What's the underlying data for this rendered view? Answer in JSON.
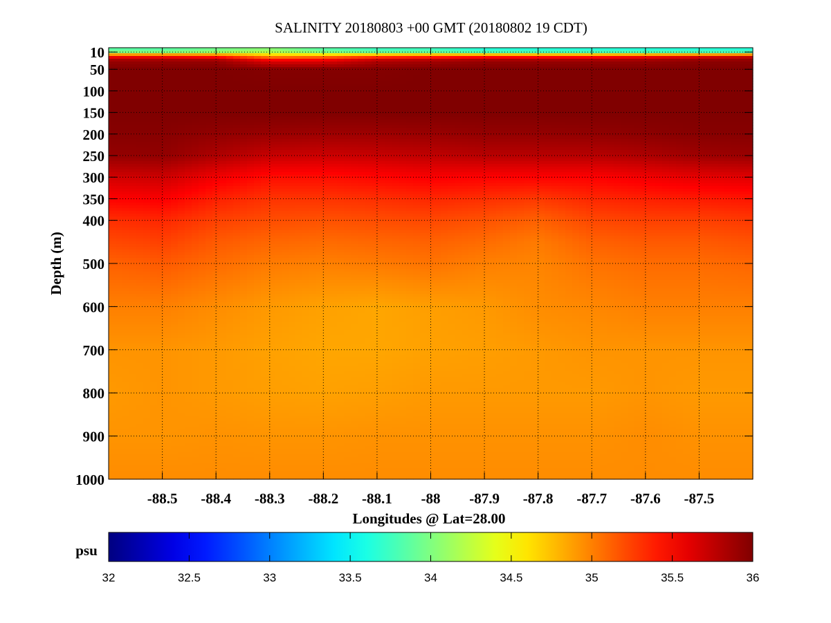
{
  "chart_data": {
    "type": "heatmap",
    "title": "SALINITY 20180803 +00 GMT (20180802 19 CDT)",
    "xlabel": "Longitudes @ Lat=28.00",
    "ylabel": "Depth (m)",
    "xlim": [
      -88.6,
      -87.4
    ],
    "ylim": [
      0,
      1000
    ],
    "y_inverted": true,
    "grid": true,
    "x_ticks": [
      -88.5,
      -88.4,
      -88.3,
      -88.2,
      -88.1,
      -88,
      -87.9,
      -87.8,
      -87.7,
      -87.6,
      -87.5
    ],
    "x_tick_labels": [
      "-88.5",
      "-88.4",
      "-88.3",
      "-88.2",
      "-88.1",
      "-88",
      "-87.9",
      "-87.8",
      "-87.7",
      "-87.6",
      "-87.5"
    ],
    "y_ticks": [
      10,
      50,
      100,
      150,
      200,
      250,
      300,
      350,
      400,
      500,
      600,
      700,
      800,
      900,
      1000
    ],
    "y_tick_labels": [
      "10",
      "50",
      "100",
      "150",
      "200",
      "250",
      "300",
      "350",
      "400",
      "500",
      "600",
      "700",
      "800",
      "900",
      "1000"
    ],
    "colorbar": {
      "label": "psu",
      "range": [
        32,
        36
      ],
      "colormap": "jet",
      "ticks": [
        32,
        32.5,
        33,
        33.5,
        34,
        34.5,
        35,
        35.5,
        36
      ],
      "tick_labels": [
        "32",
        "32.5",
        "33",
        "33.5",
        "34",
        "34.5",
        "35",
        "35.5",
        "36"
      ]
    },
    "grid_lon": [
      -88.6,
      -88.5,
      -88.4,
      -88.3,
      -88.2,
      -88.1,
      -88.0,
      -87.9,
      -87.8,
      -87.7,
      -87.6,
      -87.5,
      -87.4
    ],
    "grid_depth": [
      0,
      10,
      20,
      30,
      50,
      100,
      150,
      200,
      250,
      300,
      350,
      400,
      450,
      500,
      600,
      700,
      800,
      900,
      1000
    ],
    "values": [
      [
        33.8,
        33.8,
        33.9,
        34.0,
        33.8,
        33.7,
        33.7,
        33.6,
        33.6,
        33.6,
        33.6,
        33.6,
        33.6
      ],
      [
        34.0,
        34.0,
        34.1,
        34.2,
        34.0,
        33.9,
        33.9,
        33.8,
        33.8,
        33.8,
        33.8,
        33.8,
        33.8
      ],
      [
        35.5,
        35.5,
        35.4,
        34.9,
        35.0,
        35.2,
        35.3,
        35.4,
        35.4,
        35.4,
        35.5,
        35.6,
        35.7
      ],
      [
        35.9,
        35.9,
        35.9,
        35.6,
        35.6,
        35.8,
        35.85,
        35.9,
        35.9,
        35.9,
        35.9,
        35.95,
        35.95
      ],
      [
        36.0,
        36.0,
        36.0,
        35.98,
        35.98,
        35.98,
        36.0,
        36.0,
        36.0,
        36.0,
        36.0,
        36.0,
        36.0
      ],
      [
        36.0,
        36.0,
        36.0,
        36.0,
        36.0,
        36.0,
        36.0,
        36.0,
        36.0,
        36.0,
        36.0,
        36.0,
        36.0
      ],
      [
        36.0,
        36.0,
        36.0,
        36.0,
        36.0,
        36.0,
        36.0,
        36.0,
        36.0,
        36.0,
        36.0,
        36.0,
        36.0
      ],
      [
        35.97,
        35.97,
        35.93,
        35.9,
        35.88,
        35.88,
        35.9,
        35.92,
        35.92,
        35.93,
        35.95,
        35.97,
        35.97
      ],
      [
        35.92,
        35.93,
        35.82,
        35.72,
        35.7,
        35.72,
        35.75,
        35.78,
        35.78,
        35.78,
        35.82,
        35.88,
        35.9
      ],
      [
        35.68,
        35.7,
        35.55,
        35.45,
        35.45,
        35.48,
        35.52,
        35.5,
        35.5,
        35.5,
        35.55,
        35.6,
        35.62
      ],
      [
        35.5,
        35.52,
        35.38,
        35.3,
        35.3,
        35.32,
        35.35,
        35.32,
        35.28,
        35.35,
        35.38,
        35.4,
        35.42
      ],
      [
        35.32,
        35.35,
        35.25,
        35.2,
        35.18,
        35.2,
        35.22,
        35.18,
        35.12,
        35.22,
        35.25,
        35.25,
        35.28
      ],
      [
        35.22,
        35.25,
        35.15,
        35.1,
        35.08,
        35.1,
        35.12,
        35.08,
        35.02,
        35.12,
        35.15,
        35.15,
        35.18
      ],
      [
        35.12,
        35.15,
        35.08,
        35.02,
        35.0,
        35.02,
        35.05,
        35.0,
        34.98,
        35.05,
        35.08,
        35.08,
        35.1
      ],
      [
        35.0,
        35.0,
        34.95,
        34.9,
        34.87,
        34.85,
        34.88,
        34.9,
        34.95,
        34.97,
        35.0,
        35.0,
        35.0
      ],
      [
        34.92,
        34.92,
        34.9,
        34.87,
        34.85,
        34.85,
        34.87,
        34.88,
        34.9,
        34.92,
        34.92,
        34.92,
        34.92
      ],
      [
        34.9,
        34.92,
        34.9,
        34.88,
        34.87,
        34.88,
        34.9,
        34.9,
        34.9,
        34.9,
        34.92,
        34.9,
        34.9
      ],
      [
        34.92,
        34.92,
        34.93,
        34.92,
        34.92,
        34.93,
        34.93,
        34.93,
        34.93,
        34.93,
        34.95,
        34.93,
        34.93
      ],
      [
        34.95,
        34.95,
        34.95,
        34.95,
        34.95,
        34.95,
        34.95,
        34.95,
        34.95,
        34.95,
        34.95,
        34.95,
        34.95
      ]
    ]
  }
}
